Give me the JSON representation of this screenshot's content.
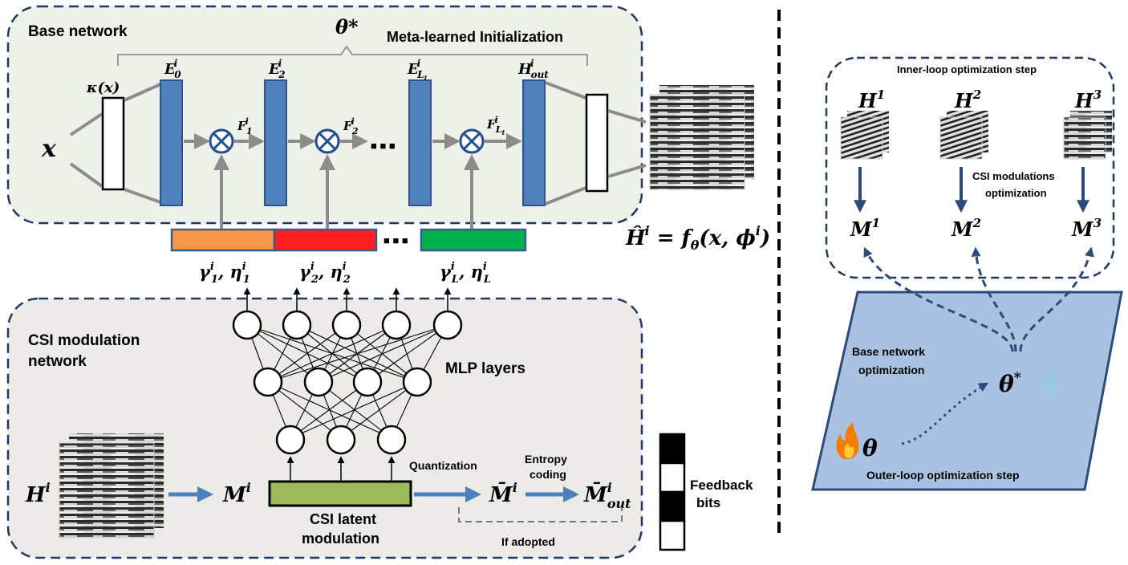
{
  "base_network": {
    "title": "Base network",
    "theta_star": "θ*",
    "meta_init": "Meta-learned Initialization",
    "input_x": "x",
    "kappa": "κ(x)",
    "E0": "E",
    "E0_sup": "i",
    "E0_sub": "0",
    "E2": "E",
    "E2_sup": "i",
    "E2_sub": "2",
    "ELt": "E",
    "ELt_sup": "i",
    "ELt_sub": "L",
    "Hout": "H",
    "Hout_sup": "i",
    "Hout_sub": "out",
    "F1": "F",
    "F1_sup": "i",
    "F1_sub": "1",
    "F2": "F",
    "F2_sup": "i",
    "F2_sub": "2",
    "FLt": "F",
    "FLt_sup": "i",
    "FLt_sub": "L",
    "dots": "■ ■ ■",
    "output_formula": "Ĥ",
    "output_formula_sup": "i",
    "output_formula_rhs": " = f",
    "output_formula_sub": "θ",
    "output_formula_args": "(x, ϕ",
    "output_formula_args_sup": "i",
    "output_formula_close": ")"
  },
  "modulation_params": {
    "p1": "γ",
    "p1_sub": "1",
    "p1_sup": "i",
    "p1b": "η",
    "p1b_sub": "1",
    "p1b_sup": "i",
    "p2": "γ",
    "p2_sub": "2",
    "p2_sup": "i",
    "p2b": "η",
    "p2b_sub": "2",
    "p2b_sup": "i",
    "p3": "γ",
    "p3_sub": "L",
    "p3_sup": "i",
    "p3b": "η",
    "p3b_sub": "L",
    "p3b_sup": "i",
    "colors": [
      "#f79646",
      "#ff1f1f",
      "#00b050"
    ]
  },
  "csi_modulation_network": {
    "title_line1": "CSI modulation",
    "title_line2": "network",
    "mlp_label": "MLP layers",
    "H_input": "H",
    "H_input_sup": "i",
    "M": "M",
    "M_sup": "i",
    "latent_line1": "CSI latent",
    "latent_line2": "modulation",
    "quantization": "Quantization",
    "Mbar": "M̄",
    "Mbar_sup": "i",
    "entropy_line1": "Entropy",
    "entropy_line2": "coding",
    "Mbar_out": "M̄",
    "Mbar_out_sup": "i",
    "Mbar_out_sub": "out",
    "if_adopted": "If adopted",
    "feedback_line1": "Feedback",
    "feedback_line2": "bits"
  },
  "right_panel": {
    "inner_loop_title": "Inner-loop optimization step",
    "H1": "H",
    "H1_sup": "1",
    "H2": "H",
    "H2_sup": "2",
    "H3": "H",
    "H3_sup": "3",
    "csi_opt_line1": "CSI modulations",
    "csi_opt_line2": "optimization",
    "M1": "M",
    "M1_sup": "1",
    "M2": "M",
    "M2_sup": "2",
    "M3": "M",
    "M3_sup": "3",
    "base_opt_line1": "Base network",
    "base_opt_line2": "optimization",
    "theta_star": "θ",
    "theta_star_sup": "*",
    "theta": "θ",
    "outer_loop_title": "Outer-loop optimization step",
    "fire_icon": "fire-icon",
    "snowflake_icon": "snowflake-icon"
  },
  "colors": {
    "panel_fill": "#eef0ea",
    "panel_border": "#1f3864",
    "layer_blue": "#4f81bd",
    "arrow_gray": "#8c8c8c",
    "arrow_blue": "#4f81bd",
    "latent_green": "#9bbb59",
    "outer_fill": "#aac2e2",
    "dark_blue": "#2e4a7a"
  }
}
